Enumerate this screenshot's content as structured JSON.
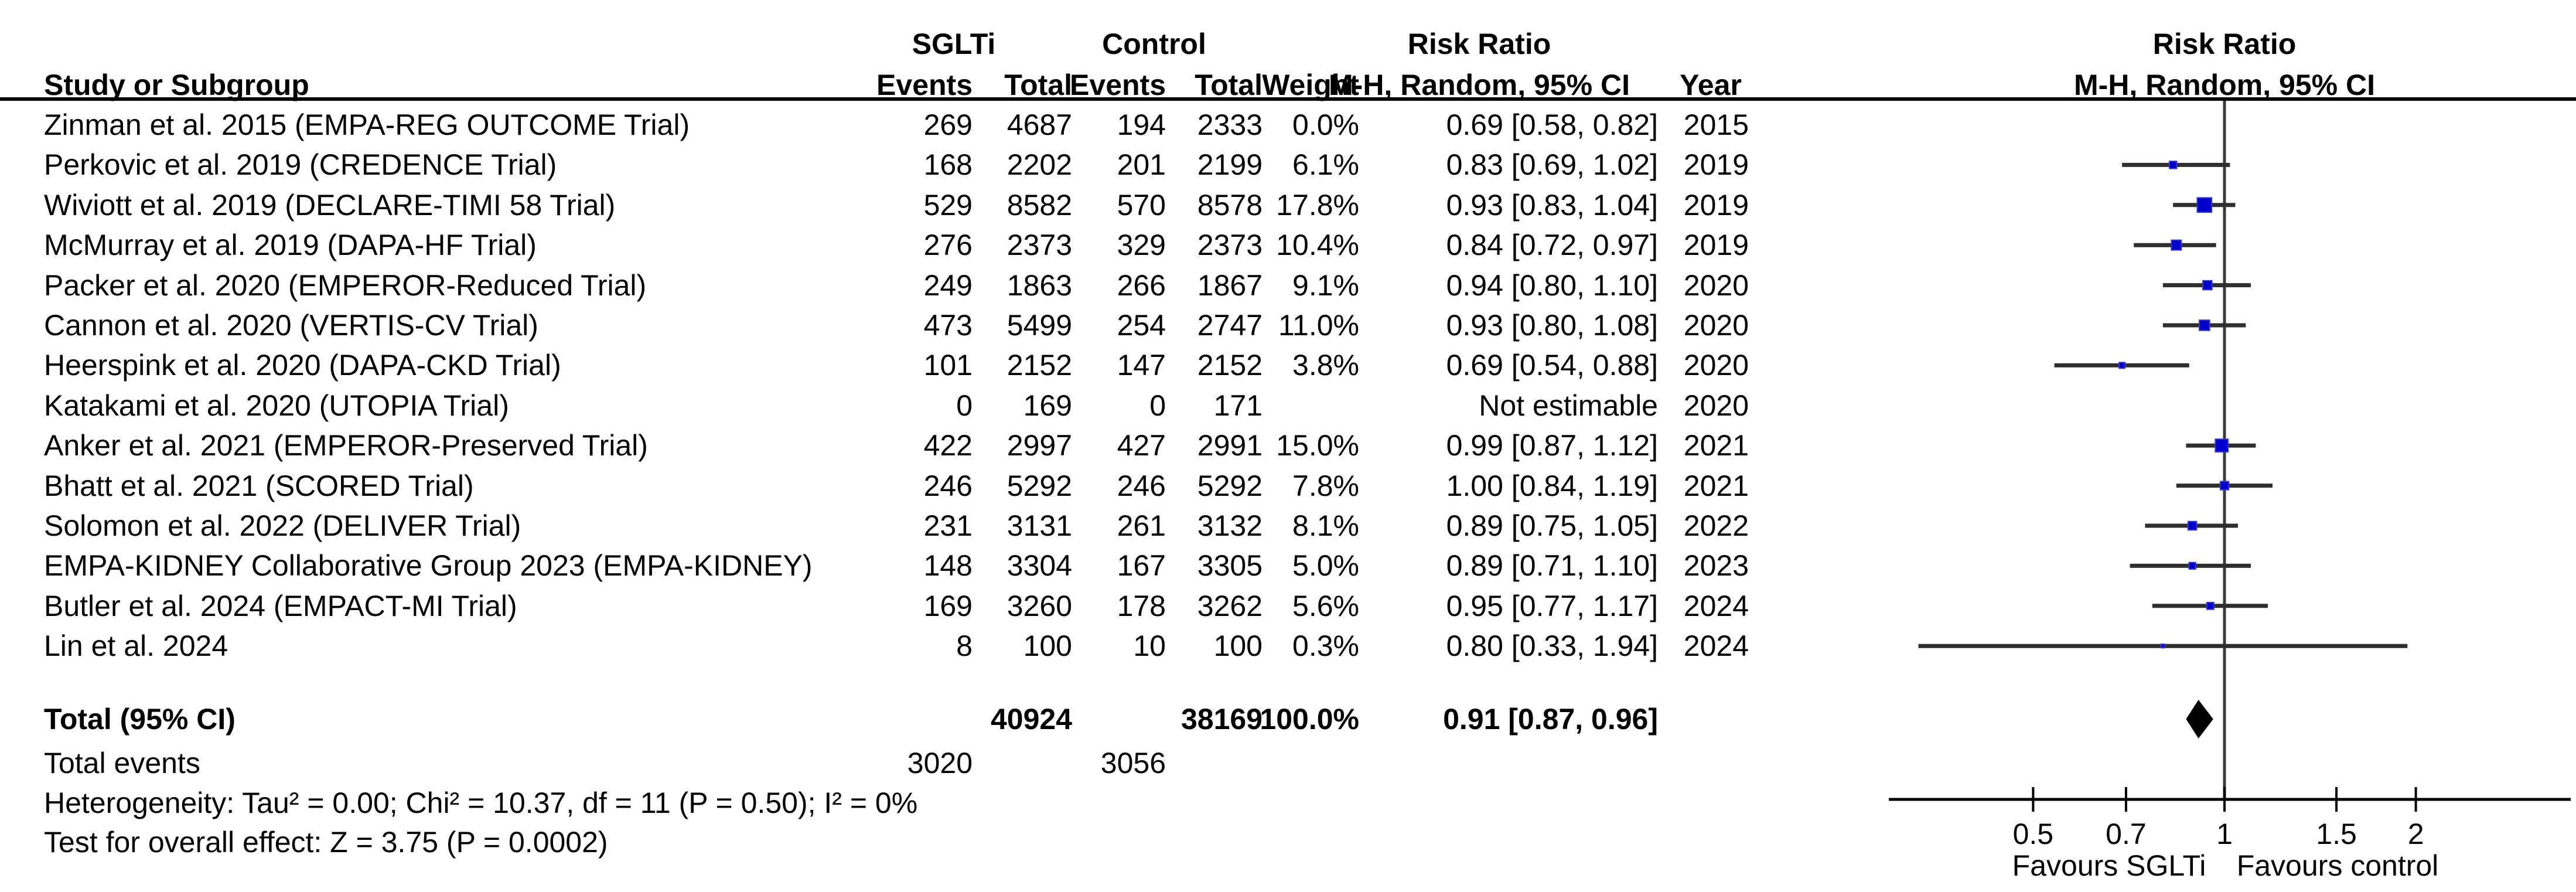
{
  "chart_data": {
    "type": "forest",
    "headers": {
      "study": "Study or Subgroup",
      "group1": "SGLTi",
      "group2": "Control",
      "events": "Events",
      "total": "Total",
      "weight": "Weight",
      "effect": "Risk Ratio",
      "method": "M-H, Random, 95% CI",
      "year": "Year",
      "plot_effect": "Risk Ratio",
      "plot_method": "M-H, Random, 95% CI"
    },
    "studies": [
      {
        "name": "Zinman et al. 2015 (EMPA-REG OUTCOME Trial)",
        "events1": 269,
        "total1": 4687,
        "events2": 194,
        "total2": 2333,
        "weight": "0.0%",
        "weight_pct": 0.0,
        "ci_text": "0.69 [0.58, 0.82]",
        "rr": 0.69,
        "lo": 0.58,
        "hi": 0.82,
        "year": "2015",
        "plotted": false
      },
      {
        "name": "Perkovic et al. 2019 (CREDENCE Trial)",
        "events1": 168,
        "total1": 2202,
        "events2": 201,
        "total2": 2199,
        "weight": "6.1%",
        "weight_pct": 6.1,
        "ci_text": "0.83 [0.69, 1.02]",
        "rr": 0.83,
        "lo": 0.69,
        "hi": 1.02,
        "year": "2019",
        "plotted": true
      },
      {
        "name": "Wiviott et al. 2019 (DECLARE-TIMI 58 Trial)",
        "events1": 529,
        "total1": 8582,
        "events2": 570,
        "total2": 8578,
        "weight": "17.8%",
        "weight_pct": 17.8,
        "ci_text": "0.93 [0.83, 1.04]",
        "rr": 0.93,
        "lo": 0.83,
        "hi": 1.04,
        "year": "2019",
        "plotted": true
      },
      {
        "name": "McMurray et al. 2019 (DAPA-HF Trial)",
        "events1": 276,
        "total1": 2373,
        "events2": 329,
        "total2": 2373,
        "weight": "10.4%",
        "weight_pct": 10.4,
        "ci_text": "0.84 [0.72, 0.97]",
        "rr": 0.84,
        "lo": 0.72,
        "hi": 0.97,
        "year": "2019",
        "plotted": true
      },
      {
        "name": "Packer et al. 2020 (EMPEROR-Reduced Trial)",
        "events1": 249,
        "total1": 1863,
        "events2": 266,
        "total2": 1867,
        "weight": "9.1%",
        "weight_pct": 9.1,
        "ci_text": "0.94 [0.80, 1.10]",
        "rr": 0.94,
        "lo": 0.8,
        "hi": 1.1,
        "year": "2020",
        "plotted": true
      },
      {
        "name": "Cannon et al. 2020 (VERTIS-CV Trial)",
        "events1": 473,
        "total1": 5499,
        "events2": 254,
        "total2": 2747,
        "weight": "11.0%",
        "weight_pct": 11.0,
        "ci_text": "0.93 [0.80, 1.08]",
        "rr": 0.93,
        "lo": 0.8,
        "hi": 1.08,
        "year": "2020",
        "plotted": true
      },
      {
        "name": "Heerspink et al. 2020 (DAPA-CKD Trial)",
        "events1": 101,
        "total1": 2152,
        "events2": 147,
        "total2": 2152,
        "weight": "3.8%",
        "weight_pct": 3.8,
        "ci_text": "0.69 [0.54, 0.88]",
        "rr": 0.69,
        "lo": 0.54,
        "hi": 0.88,
        "year": "2020",
        "plotted": true
      },
      {
        "name": "Katakami et al. 2020 (UTOPIA Trial)",
        "events1": 0,
        "total1": 169,
        "events2": 0,
        "total2": 171,
        "weight": "",
        "weight_pct": 0,
        "ci_text": "Not estimable",
        "rr": null,
        "lo": null,
        "hi": null,
        "year": "2020",
        "plotted": false
      },
      {
        "name": "Anker et al. 2021 (EMPEROR-Preserved Trial)",
        "events1": 422,
        "total1": 2997,
        "events2": 427,
        "total2": 2991,
        "weight": "15.0%",
        "weight_pct": 15.0,
        "ci_text": "0.99 [0.87, 1.12]",
        "rr": 0.99,
        "lo": 0.87,
        "hi": 1.12,
        "year": "2021",
        "plotted": true
      },
      {
        "name": "Bhatt et al. 2021 (SCORED Trial)",
        "events1": 246,
        "total1": 5292,
        "events2": 246,
        "total2": 5292,
        "weight": "7.8%",
        "weight_pct": 7.8,
        "ci_text": "1.00 [0.84, 1.19]",
        "rr": 1.0,
        "lo": 0.84,
        "hi": 1.19,
        "year": "2021",
        "plotted": true
      },
      {
        "name": "Solomon et al. 2022 (DELIVER Trial)",
        "events1": 231,
        "total1": 3131,
        "events2": 261,
        "total2": 3132,
        "weight": "8.1%",
        "weight_pct": 8.1,
        "ci_text": "0.89 [0.75, 1.05]",
        "rr": 0.89,
        "lo": 0.75,
        "hi": 1.05,
        "year": "2022",
        "plotted": true
      },
      {
        "name": "EMPA-KIDNEY Collaborative Group 2023 (EMPA-KIDNEY)",
        "events1": 148,
        "total1": 3304,
        "events2": 167,
        "total2": 3305,
        "weight": "5.0%",
        "weight_pct": 5.0,
        "ci_text": "0.89 [0.71, 1.10]",
        "rr": 0.89,
        "lo": 0.71,
        "hi": 1.1,
        "year": "2023",
        "plotted": true
      },
      {
        "name": "Butler et al. 2024 (EMPACT-MI Trial)",
        "events1": 169,
        "total1": 3260,
        "events2": 178,
        "total2": 3262,
        "weight": "5.6%",
        "weight_pct": 5.6,
        "ci_text": "0.95 [0.77, 1.17]",
        "rr": 0.95,
        "lo": 0.77,
        "hi": 1.17,
        "year": "2024",
        "plotted": true
      },
      {
        "name": "Lin et al. 2024",
        "events1": 8,
        "total1": 100,
        "events2": 10,
        "total2": 100,
        "weight": "0.3%",
        "weight_pct": 0.3,
        "ci_text": "0.80 [0.33, 1.94]",
        "rr": 0.8,
        "lo": 0.33,
        "hi": 1.94,
        "year": "2024",
        "plotted": true
      }
    ],
    "total": {
      "label": "Total (95% CI)",
      "total1": "40924",
      "total2": "38169",
      "weight": "100.0%",
      "ci_text": "0.91 [0.87, 0.96]",
      "rr": 0.91,
      "lo": 0.87,
      "hi": 0.96
    },
    "total_events": {
      "label": "Total events",
      "events1": "3020",
      "events2": "3056"
    },
    "heterogeneity": "Heterogeneity: Tau² = 0.00; Chi² = 10.37, df = 11 (P = 0.50); I² = 0%",
    "overall_effect": "Test for overall effect: Z = 3.75 (P = 0.0002)",
    "axis": {
      "scale": "log",
      "ticks": [
        "0.5",
        "0.7",
        "1",
        "1.5",
        "2"
      ],
      "xlim": [
        0.3,
        2.5
      ],
      "favours_left": "Favours SGLTi",
      "favours_right": "Favours control"
    },
    "colors": {
      "square_fill": "#0000CC",
      "square_border": "#3333DD",
      "ci_line": "#2e2e2e",
      "centerline": "#3a3a3a",
      "axis": "#000000",
      "diamond": "#000000",
      "text": "#000000"
    }
  }
}
